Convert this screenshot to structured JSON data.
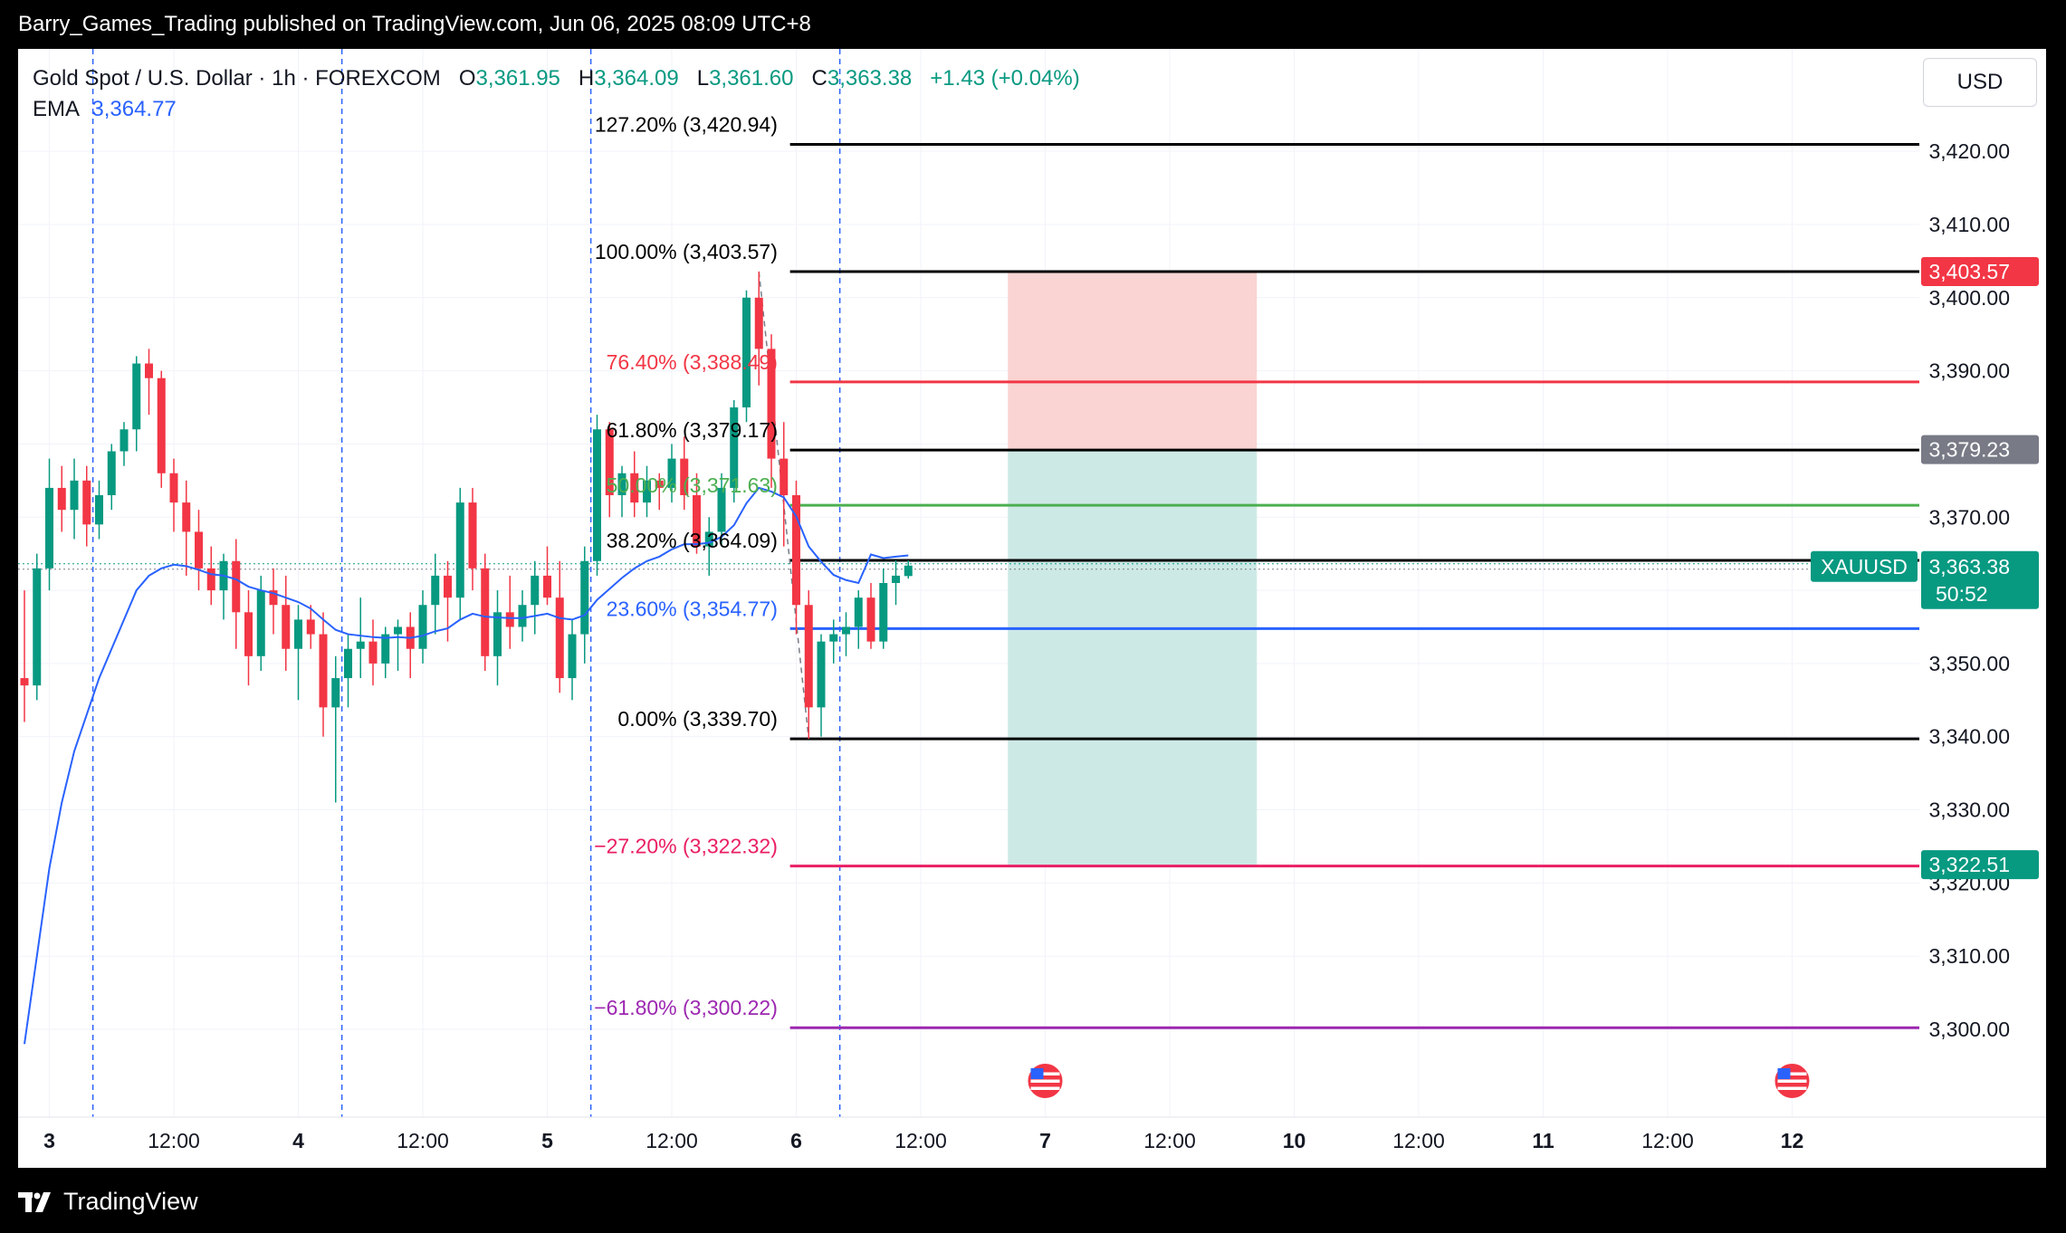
{
  "header": {
    "publisher_line": "Barry_Games_Trading published on TradingView.com, Jun 06, 2025 08:09 UTC+8"
  },
  "footer": {
    "brand": "TradingView"
  },
  "legend": {
    "symbol_line": "Gold Spot / U.S. Dollar · 1h · FOREXCOM",
    "o_label": "O",
    "o_value": "3,361.95",
    "h_label": "H",
    "h_value": "3,364.09",
    "l_label": "L",
    "l_value": "3,361.60",
    "c_label": "C",
    "c_value": "3,363.38",
    "change": "+1.43 (+0.04%)",
    "ema_label": "EMA",
    "ema_value": "3,364.77"
  },
  "currency": "USD",
  "colors": {
    "up": "#089981",
    "down": "#f23645",
    "ema": "#2962ff",
    "fib_black": "#000000",
    "fib_red": "#f23645",
    "fib_green": "#4caf50",
    "fib_blue": "#2962ff",
    "fib_pink": "#e91e63",
    "fib_purple": "#9c27b0",
    "stop_zone": "#f9d4d2",
    "target_zone": "#cde9e6"
  },
  "chart_data": {
    "type": "candlestick",
    "symbol": "XAUUSD",
    "interval": "1h",
    "ylim": [
      3288,
      3434
    ],
    "y_ticks": [
      "3,420.00",
      "3,410.00",
      "3,400.00",
      "3,390.00",
      "3,380.00",
      "3,370.00",
      "3,360.00",
      "3,350.00",
      "3,340.00",
      "3,330.00",
      "3,320.00",
      "3,310.00",
      "3,300.00"
    ],
    "x_ticks": [
      {
        "label": "3",
        "bold": true,
        "bar": 2
      },
      {
        "label": "12:00",
        "bold": false,
        "bar": 12
      },
      {
        "label": "4",
        "bold": true,
        "bar": 22
      },
      {
        "label": "12:00",
        "bold": false,
        "bar": 32
      },
      {
        "label": "5",
        "bold": true,
        "bar": 42
      },
      {
        "label": "12:00",
        "bold": false,
        "bar": 52
      },
      {
        "label": "6",
        "bold": true,
        "bar": 62
      },
      {
        "label": "12:00",
        "bold": false,
        "bar": 72
      },
      {
        "label": "7",
        "bold": true,
        "bar": 82
      },
      {
        "label": "12:00",
        "bold": false,
        "bar": 92
      },
      {
        "label": "10",
        "bold": true,
        "bar": 102
      },
      {
        "label": "12:00",
        "bold": false,
        "bar": 112
      },
      {
        "label": "11",
        "bold": true,
        "bar": 122
      },
      {
        "label": "12:00",
        "bold": false,
        "bar": 132
      },
      {
        "label": "12",
        "bold": true,
        "bar": 142
      }
    ],
    "session_lines_bar": [
      6,
      26,
      46,
      66
    ],
    "candles": [
      [
        3348,
        3360,
        3342,
        3347
      ],
      [
        3347,
        3365,
        3345,
        3363
      ],
      [
        3363,
        3378,
        3360,
        3374
      ],
      [
        3374,
        3377,
        3368,
        3371
      ],
      [
        3371,
        3378,
        3367,
        3375
      ],
      [
        3375,
        3377,
        3366,
        3369
      ],
      [
        3369,
        3375,
        3367,
        3373
      ],
      [
        3373,
        3380,
        3371,
        3379
      ],
      [
        3379,
        3383,
        3377,
        3382
      ],
      [
        3382,
        3392,
        3379,
        3391
      ],
      [
        3391,
        3393,
        3384,
        3389
      ],
      [
        3389,
        3390,
        3374,
        3376
      ],
      [
        3376,
        3378,
        3368,
        3372
      ],
      [
        3372,
        3375,
        3362,
        3368
      ],
      [
        3368,
        3371,
        3360,
        3363
      ],
      [
        3363,
        3366,
        3358,
        3360
      ],
      [
        3360,
        3365,
        3356,
        3364
      ],
      [
        3364,
        3367,
        3352,
        3357
      ],
      [
        3357,
        3360,
        3347,
        3351
      ],
      [
        3351,
        3362,
        3349,
        3360
      ],
      [
        3360,
        3363,
        3354,
        3358
      ],
      [
        3358,
        3362,
        3349,
        3352
      ],
      [
        3352,
        3358,
        3345,
        3356
      ],
      [
        3356,
        3358,
        3352,
        3354
      ],
      [
        3354,
        3357,
        3340,
        3344
      ],
      [
        3344,
        3351,
        3331,
        3348
      ],
      [
        3348,
        3354,
        3344,
        3352
      ],
      [
        3352,
        3359,
        3348,
        3353
      ],
      [
        3353,
        3356,
        3347,
        3350
      ],
      [
        3350,
        3355,
        3348,
        3354
      ],
      [
        3354,
        3356,
        3349,
        3355
      ],
      [
        3355,
        3357,
        3348,
        3352
      ],
      [
        3352,
        3360,
        3350,
        3358
      ],
      [
        3358,
        3365,
        3354,
        3362
      ],
      [
        3362,
        3364,
        3353,
        3359
      ],
      [
        3359,
        3374,
        3356,
        3372
      ],
      [
        3372,
        3374,
        3360,
        3363
      ],
      [
        3363,
        3365,
        3349,
        3351
      ],
      [
        3351,
        3360,
        3347,
        3357
      ],
      [
        3357,
        3362,
        3352,
        3355
      ],
      [
        3355,
        3360,
        3353,
        3358
      ],
      [
        3358,
        3364,
        3354,
        3362
      ],
      [
        3362,
        3366,
        3358,
        3359
      ],
      [
        3359,
        3364,
        3346,
        3348
      ],
      [
        3348,
        3356,
        3345,
        3354
      ],
      [
        3354,
        3366,
        3350,
        3364
      ],
      [
        3364,
        3384,
        3362,
        3382
      ],
      [
        3382,
        3383,
        3370,
        3373
      ],
      [
        3373,
        3377,
        3370,
        3376
      ],
      [
        3376,
        3379,
        3370,
        3372
      ],
      [
        3372,
        3377,
        3370,
        3375
      ],
      [
        3375,
        3376,
        3371,
        3374
      ],
      [
        3374,
        3380,
        3372,
        3378
      ],
      [
        3378,
        3381,
        3371,
        3373
      ],
      [
        3373,
        3376,
        3365,
        3366
      ],
      [
        3366,
        3370,
        3362,
        3368
      ],
      [
        3368,
        3376,
        3366,
        3374
      ],
      [
        3374,
        3386,
        3372,
        3385
      ],
      [
        3385,
        3401,
        3383,
        3400
      ],
      [
        3400,
        3403.57,
        3388,
        3393
      ],
      [
        3393,
        3395,
        3374,
        3378
      ],
      [
        3378,
        3383,
        3366,
        3373
      ],
      [
        3373,
        3375,
        3354,
        3358
      ],
      [
        3358,
        3360,
        3339.7,
        3344
      ],
      [
        3344,
        3354,
        3340,
        3353
      ],
      [
        3353,
        3356,
        3350,
        3354
      ],
      [
        3354,
        3357,
        3351,
        3355
      ],
      [
        3355,
        3360,
        3352,
        3359
      ],
      [
        3359,
        3361,
        3352,
        3353
      ],
      [
        3353,
        3363,
        3352,
        3361
      ],
      [
        3361,
        3364.09,
        3358,
        3362
      ],
      [
        3361.95,
        3364.09,
        3361.6,
        3363.38
      ]
    ],
    "ema": [
      3298,
      3310,
      3322,
      3331,
      3338,
      3343,
      3348,
      3352,
      3356,
      3360,
      3362,
      3363,
      3363.5,
      3363.3,
      3362.8,
      3362.2,
      3362,
      3361.5,
      3360.5,
      3360,
      3359.6,
      3359,
      3358.4,
      3357.5,
      3356,
      3354.6,
      3354,
      3353.8,
      3353.6,
      3353.5,
      3353.6,
      3353.5,
      3353.8,
      3354.4,
      3354.8,
      3356,
      3356.8,
      3356.4,
      3356.3,
      3356.2,
      3356.2,
      3356.5,
      3356.8,
      3356.2,
      3356,
      3356.6,
      3358.7,
      3360.2,
      3361.7,
      3363,
      3364,
      3364.6,
      3365.6,
      3366.3,
      3366.3,
      3366.5,
      3367.3,
      3368.9,
      3371.9,
      3374,
      3373.5,
      3372.7,
      3370.1,
      3366,
      3363.9,
      3362.1,
      3361.4,
      3361,
      3364.9,
      3364.4,
      3364.6,
      3364.77
    ],
    "fib_levels": [
      {
        "label": "127.20% (3,420.94)",
        "price": 3420.94,
        "color": "#000000"
      },
      {
        "label": "100.00% (3,403.57)",
        "price": 3403.57,
        "color": "#000000"
      },
      {
        "label": "76.40% (3,388.49)",
        "price": 3388.49,
        "color": "#f23645"
      },
      {
        "label": "61.80% (3,379.17)",
        "price": 3379.17,
        "color": "#000000"
      },
      {
        "label": "50.00% (3,371.63)",
        "price": 3371.63,
        "color": "#4caf50"
      },
      {
        "label": "38.20% (3,364.09)",
        "price": 3364.09,
        "color": "#000000"
      },
      {
        "label": "23.60% (3,354.77)",
        "price": 3354.77,
        "color": "#2962ff"
      },
      {
        "label": "0.00% (3,339.70)",
        "price": 3339.7,
        "color": "#000000"
      },
      {
        "label": "−27.20% (3,322.32)",
        "price": 3322.32,
        "color": "#e91e63"
      },
      {
        "label": "−61.80% (3,300.22)",
        "price": 3300.22,
        "color": "#9c27b0"
      }
    ],
    "position": {
      "entry": 3379.23,
      "stop": 3403.57,
      "target": 3322.51,
      "from_bar": 79,
      "to_bar": 99
    },
    "price_badges": [
      {
        "text": "3,403.57",
        "price": 3403.57,
        "color": "#f23645"
      },
      {
        "text": "3,379.23",
        "price": 3379.23,
        "color": "#787b86"
      },
      {
        "text": "3,322.51",
        "price": 3322.51,
        "color": "#089981"
      }
    ],
    "last_price": {
      "symbol": "XAUUSD",
      "text": "3,363.38",
      "countdown": "50:52",
      "price": 3363.38,
      "color": "#089981"
    },
    "event_markers_bar": [
      82,
      142
    ]
  }
}
